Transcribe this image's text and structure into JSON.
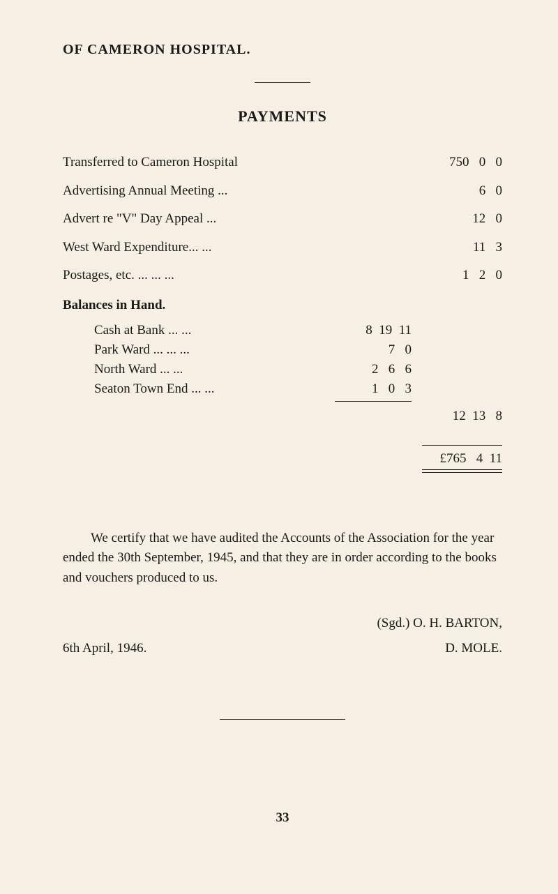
{
  "header": "OF CAMERON HOSPITAL.",
  "sectionTitle": "PAYMENTS",
  "payments": [
    {
      "label": "Transferred to Cameron Hospital",
      "amount": "750   0   0"
    },
    {
      "label": "Advertising Annual Meeting       ...",
      "amount": "6   0"
    },
    {
      "label": "Advert re \"V\" Day Appeal        ...",
      "amount": "12   0"
    },
    {
      "label": "West Ward Expenditure...        ...",
      "amount": "11   3"
    },
    {
      "label": "Postages, etc.        ...        ...        ...",
      "amount": "1   2   0"
    }
  ],
  "balancesTitle": "Balances in Hand.",
  "balances": [
    {
      "label": "Cash at Bank           ...        ...",
      "amount": "8  19  11"
    },
    {
      "label": "Park Ward  ...        ...        ...",
      "amount": "7   0"
    },
    {
      "label": "North Ward            ...        ...",
      "amount": "2   6   6"
    },
    {
      "label": "Seaton Town End   ...        ...",
      "amount": "1   0   3"
    }
  ],
  "balancesTotal": "12  13   8",
  "grandTotal": "£765   4  11",
  "certText": "We certify that we have audited the Accounts of the Association for the year ended the 30th September, 1945, and that they are in order according to the books and vouchers produced to us.",
  "sigTop": "(Sgd.)  O. H. BARTON,",
  "sigDate": "6th April, 1946.",
  "sigName": "D. MOLE.",
  "pageNum": "33"
}
